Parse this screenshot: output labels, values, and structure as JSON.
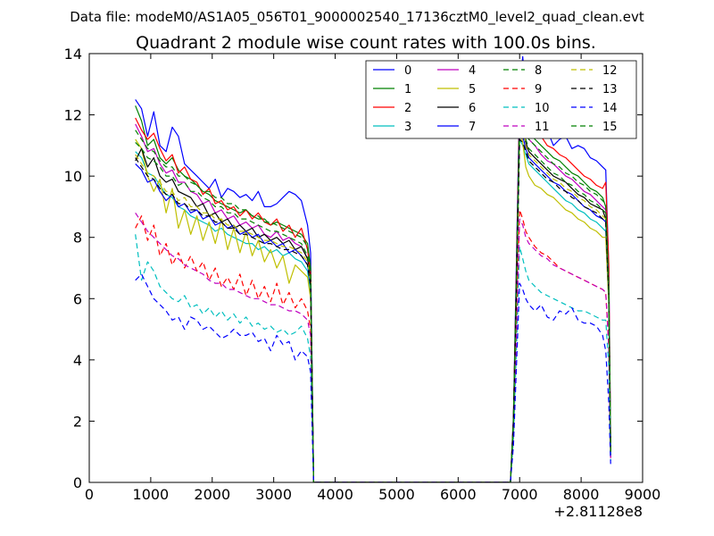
{
  "header": "Data file: modeM0/AS1A05_056T01_9000002540_17136cztM0_level2_quad_clean.evt",
  "chart_data": {
    "type": "line",
    "title": "Quadrant 2 module wise count rates with 100.0s bins.",
    "xlabel": "",
    "ylabel": "",
    "x_offset_label": "+2.81128e8",
    "xlim": [
      0,
      9000
    ],
    "ylim": [
      0,
      14
    ],
    "xticks": [
      "0",
      "1000",
      "2000",
      "3000",
      "4000",
      "5000",
      "6000",
      "7000",
      "8000",
      "9000"
    ],
    "yticks": [
      "0",
      "2",
      "4",
      "6",
      "8",
      "10",
      "12",
      "14"
    ],
    "legend_position": "top-right",
    "x": [
      750,
      850,
      950,
      1050,
      1150,
      1250,
      1350,
      1450,
      1550,
      1650,
      1750,
      1850,
      1950,
      2050,
      2150,
      2250,
      2350,
      2450,
      2550,
      2650,
      2750,
      2850,
      2950,
      3050,
      3150,
      3250,
      3350,
      3450,
      3550,
      3600,
      3650,
      3700,
      6800,
      6850,
      6900,
      6950,
      7000,
      7050,
      7100,
      7150,
      7250,
      7350,
      7450,
      7550,
      7650,
      7750,
      7850,
      7950,
      8050,
      8150,
      8250,
      8350,
      8400,
      8450,
      8480
    ],
    "series": [
      {
        "name": "0",
        "color": "#0000ff",
        "dash": "solid",
        "values": [
          12.5,
          12.2,
          11.3,
          12.1,
          11.0,
          10.8,
          11.6,
          11.3,
          10.4,
          10.2,
          10.0,
          9.8,
          9.6,
          9.9,
          9.3,
          9.6,
          9.5,
          9.3,
          9.4,
          9.2,
          9.5,
          9.0,
          9.0,
          9.1,
          9.3,
          9.5,
          9.4,
          9.2,
          8.4,
          7.5,
          0,
          0,
          0,
          0,
          2.2,
          7.5,
          12.8,
          13.9,
          12.6,
          12.0,
          11.8,
          11.5,
          11.5,
          11.0,
          11.2,
          11.3,
          10.9,
          11.0,
          10.9,
          10.6,
          10.5,
          10.3,
          10.2,
          7.0,
          1.2
        ]
      },
      {
        "name": "1",
        "color": "#008000",
        "dash": "solid",
        "values": [
          12.3,
          11.8,
          11.0,
          11.2,
          10.6,
          10.4,
          10.6,
          10.2,
          10.0,
          9.9,
          9.7,
          9.5,
          9.4,
          9.2,
          9.1,
          9.0,
          8.9,
          8.8,
          8.9,
          8.7,
          8.6,
          8.6,
          8.4,
          8.5,
          8.4,
          8.3,
          8.2,
          8.1,
          7.8,
          7.0,
          0,
          0,
          0,
          0,
          2.0,
          7.0,
          12.3,
          12.2,
          11.8,
          11.5,
          11.2,
          11.0,
          10.8,
          10.6,
          10.5,
          10.3,
          10.1,
          10.0,
          9.8,
          9.6,
          9.5,
          9.3,
          9.0,
          6.5,
          1.0
        ]
      },
      {
        "name": "2",
        "color": "#ff0000",
        "dash": "solid",
        "values": [
          11.9,
          11.5,
          11.2,
          11.4,
          10.9,
          10.5,
          10.7,
          10.1,
          10.3,
          9.9,
          9.8,
          9.4,
          9.6,
          9.1,
          9.2,
          8.9,
          9.0,
          8.7,
          8.9,
          8.6,
          8.8,
          8.5,
          8.4,
          8.6,
          8.2,
          8.4,
          8.0,
          8.3,
          7.6,
          6.8,
          0,
          0,
          0,
          0,
          2.1,
          7.2,
          12.4,
          12.8,
          12.1,
          11.7,
          11.6,
          11.3,
          11.0,
          10.9,
          10.7,
          10.6,
          10.4,
          10.2,
          10.0,
          9.9,
          9.7,
          9.6,
          9.8,
          7.1,
          1.3
        ]
      },
      {
        "name": "3",
        "color": "#00bfbf",
        "dash": "solid",
        "values": [
          10.8,
          10.6,
          10.1,
          10.0,
          9.7,
          9.4,
          9.3,
          9.0,
          8.9,
          8.7,
          8.6,
          8.5,
          8.4,
          8.2,
          8.3,
          8.1,
          8.0,
          7.9,
          7.8,
          7.8,
          7.6,
          7.7,
          7.5,
          7.6,
          7.4,
          7.5,
          7.3,
          7.2,
          6.9,
          6.2,
          0,
          0,
          0,
          0,
          1.9,
          6.5,
          11.2,
          11.0,
          10.7,
          10.4,
          10.2,
          10.0,
          9.8,
          9.6,
          9.4,
          9.2,
          9.1,
          8.9,
          8.8,
          8.6,
          8.5,
          8.3,
          8.2,
          5.9,
          0.9
        ]
      },
      {
        "name": "4",
        "color": "#bf00bf",
        "dash": "solid",
        "values": [
          11.7,
          11.3,
          10.8,
          10.9,
          10.4,
          10.1,
          10.2,
          9.8,
          9.8,
          9.5,
          9.4,
          9.1,
          9.2,
          8.8,
          8.9,
          8.6,
          8.7,
          8.4,
          8.5,
          8.3,
          8.4,
          8.1,
          8.0,
          8.2,
          7.9,
          8.0,
          7.8,
          7.7,
          7.3,
          6.6,
          0,
          0,
          0,
          0,
          2.0,
          6.9,
          12.0,
          11.9,
          11.5,
          11.2,
          11.0,
          10.7,
          10.5,
          10.4,
          10.2,
          10.0,
          9.9,
          9.7,
          9.5,
          9.4,
          9.2,
          9.0,
          8.9,
          6.4,
          1.0
        ]
      },
      {
        "name": "5",
        "color": "#bfbf00",
        "dash": "solid",
        "values": [
          11.2,
          10.9,
          10.0,
          9.5,
          9.9,
          8.8,
          9.6,
          8.3,
          8.9,
          8.1,
          8.7,
          7.9,
          8.5,
          7.8,
          8.6,
          7.6,
          8.3,
          7.5,
          8.2,
          7.4,
          7.9,
          7.2,
          7.6,
          7.0,
          7.4,
          6.5,
          7.1,
          6.9,
          6.7,
          6.0,
          0,
          0,
          0,
          0,
          1.8,
          6.6,
          11.6,
          11.1,
          10.3,
          10.0,
          9.7,
          9.6,
          9.4,
          9.3,
          9.1,
          8.9,
          8.8,
          8.6,
          8.5,
          8.3,
          8.2,
          8.0,
          8.0,
          5.8,
          0.9
        ]
      },
      {
        "name": "6",
        "color": "#000000",
        "dash": "solid",
        "values": [
          10.5,
          10.9,
          10.3,
          10.6,
          10.0,
          9.8,
          9.9,
          9.5,
          9.4,
          9.3,
          9.0,
          9.1,
          8.7,
          8.8,
          8.5,
          8.6,
          8.3,
          8.4,
          8.2,
          8.3,
          8.0,
          8.1,
          7.9,
          8.0,
          7.8,
          7.9,
          7.6,
          7.7,
          7.3,
          6.6,
          0,
          0,
          0,
          0,
          2.0,
          6.8,
          11.7,
          11.5,
          11.1,
          10.8,
          10.6,
          10.4,
          10.2,
          10.0,
          9.9,
          9.8,
          9.6,
          9.4,
          9.3,
          9.1,
          9.0,
          8.9,
          8.6,
          6.2,
          1.0
        ]
      },
      {
        "name": "7",
        "color": "#0000ff",
        "dash": "solid",
        "values": [
          10.4,
          10.2,
          9.8,
          9.9,
          9.5,
          9.2,
          9.4,
          9.0,
          9.1,
          8.8,
          8.9,
          8.6,
          8.7,
          8.4,
          8.5,
          8.3,
          8.4,
          8.1,
          8.2,
          8.0,
          8.1,
          7.8,
          7.9,
          7.7,
          7.8,
          7.5,
          7.6,
          7.4,
          7.1,
          6.4,
          0,
          0,
          0,
          0,
          1.9,
          6.6,
          11.4,
          11.3,
          10.9,
          10.6,
          10.4,
          10.2,
          10.0,
          9.8,
          9.7,
          9.5,
          9.4,
          9.2,
          9.0,
          8.9,
          8.7,
          8.6,
          8.5,
          6.1,
          0.9
        ]
      },
      {
        "name": "8",
        "color": "#008000",
        "dash": "dashed",
        "values": [
          11.1,
          10.9,
          10.6,
          10.5,
          10.3,
          10.0,
          10.0,
          9.7,
          9.8,
          9.5,
          9.5,
          9.3,
          9.2,
          9.0,
          9.0,
          8.8,
          8.8,
          8.6,
          8.6,
          8.5,
          8.4,
          8.3,
          8.2,
          8.2,
          8.1,
          8.0,
          7.9,
          7.8,
          7.4,
          6.7,
          0,
          0,
          0,
          0,
          2.0,
          6.8,
          11.8,
          11.6,
          11.2,
          10.9,
          10.7,
          10.5,
          10.3,
          10.1,
          10.0,
          9.8,
          9.7,
          9.5,
          9.4,
          9.2,
          9.1,
          8.9,
          8.8,
          6.3,
          1.0
        ]
      },
      {
        "name": "9",
        "color": "#ff0000",
        "dash": "dashed",
        "values": [
          8.3,
          8.7,
          7.9,
          8.4,
          7.4,
          7.8,
          7.1,
          7.5,
          7.0,
          7.4,
          6.9,
          7.2,
          6.6,
          7.0,
          6.4,
          6.7,
          6.3,
          6.8,
          6.1,
          6.6,
          6.0,
          6.4,
          5.9,
          6.5,
          5.8,
          6.2,
          5.7,
          6.0,
          5.6,
          5.0,
          0,
          0,
          0,
          0,
          1.6,
          5.3,
          8.9,
          8.6,
          8.2,
          8.0,
          7.7,
          7.5,
          7.4,
          7.2,
          7.0,
          6.9,
          6.8,
          6.7,
          6.6,
          6.5,
          6.4,
          6.3,
          6.2,
          4.4,
          0.8
        ]
      },
      {
        "name": "10",
        "color": "#00bfbf",
        "dash": "dashed",
        "values": [
          8.1,
          6.6,
          7.2,
          6.9,
          6.4,
          6.2,
          6.0,
          5.9,
          6.1,
          5.7,
          5.8,
          5.5,
          5.7,
          5.4,
          5.6,
          5.3,
          5.5,
          5.2,
          5.4,
          5.1,
          5.2,
          5.0,
          5.1,
          4.9,
          5.0,
          4.8,
          4.9,
          5.1,
          4.7,
          4.1,
          0,
          0,
          0,
          0,
          1.4,
          4.5,
          7.7,
          7.3,
          6.9,
          6.6,
          6.4,
          6.2,
          6.1,
          6.0,
          5.9,
          5.8,
          5.7,
          5.6,
          5.6,
          5.5,
          5.4,
          5.3,
          5.3,
          3.8,
          0.7
        ]
      },
      {
        "name": "11",
        "color": "#bf00bf",
        "dash": "dashed",
        "values": [
          8.8,
          8.5,
          8.2,
          8.0,
          7.8,
          7.6,
          7.4,
          7.3,
          7.1,
          7.0,
          6.9,
          6.8,
          6.6,
          6.5,
          6.5,
          6.3,
          6.3,
          6.2,
          6.1,
          6.0,
          6.0,
          5.9,
          5.8,
          5.8,
          5.7,
          5.6,
          5.6,
          5.5,
          5.3,
          4.8,
          0,
          0,
          0,
          0,
          1.5,
          5.0,
          8.6,
          8.4,
          8.0,
          7.8,
          7.6,
          7.4,
          7.3,
          7.1,
          7.0,
          6.9,
          6.8,
          6.7,
          6.6,
          6.5,
          6.4,
          6.3,
          6.2,
          4.5,
          0.8
        ]
      },
      {
        "name": "12",
        "color": "#bfbf00",
        "dash": "dashed",
        "values": [
          10.7,
          10.4,
          10.1,
          10.0,
          9.8,
          9.5,
          9.5,
          9.2,
          9.3,
          9.0,
          9.0,
          8.8,
          8.8,
          8.6,
          8.6,
          8.4,
          8.4,
          8.2,
          8.2,
          8.1,
          8.0,
          7.9,
          7.9,
          7.8,
          7.7,
          7.7,
          7.6,
          7.5,
          7.2,
          6.5,
          0,
          0,
          0,
          0,
          1.9,
          6.5,
          11.3,
          12.0,
          11.0,
          10.7,
          10.5,
          10.3,
          10.1,
          9.9,
          9.8,
          9.6,
          9.5,
          9.3,
          9.2,
          9.0,
          8.9,
          8.7,
          8.6,
          6.2,
          1.0
        ]
      },
      {
        "name": "13",
        "color": "#000000",
        "dash": "dashed",
        "values": [
          10.6,
          10.3,
          10.0,
          9.9,
          9.6,
          9.4,
          9.4,
          9.1,
          9.1,
          8.9,
          8.9,
          8.7,
          8.7,
          8.5,
          8.5,
          8.3,
          8.3,
          8.1,
          8.1,
          8.0,
          7.9,
          7.8,
          7.8,
          7.7,
          7.6,
          7.6,
          7.5,
          7.4,
          7.1,
          6.4,
          0,
          0,
          0,
          0,
          1.9,
          6.4,
          11.2,
          11.1,
          10.8,
          10.5,
          10.3,
          10.1,
          9.9,
          9.8,
          9.6,
          9.5,
          9.3,
          9.2,
          9.0,
          8.9,
          8.8,
          8.6,
          8.5,
          6.1,
          0.9
        ]
      },
      {
        "name": "14",
        "color": "#0000ff",
        "dash": "dashed",
        "values": [
          6.6,
          6.8,
          6.4,
          6.0,
          5.8,
          5.6,
          5.3,
          5.4,
          5.0,
          5.4,
          5.3,
          5.0,
          5.1,
          4.9,
          4.7,
          4.8,
          5.0,
          4.8,
          4.8,
          4.9,
          4.6,
          4.7,
          4.3,
          4.8,
          4.5,
          4.6,
          4.0,
          4.3,
          4.1,
          3.6,
          0,
          0,
          0,
          0,
          1.2,
          3.9,
          6.5,
          6.3,
          6.0,
          5.8,
          5.6,
          5.8,
          5.4,
          5.3,
          5.6,
          5.5,
          5.7,
          5.3,
          5.2,
          5.2,
          5.1,
          4.8,
          4.3,
          2.6,
          0.6
        ]
      },
      {
        "name": "15",
        "color": "#008000",
        "dash": "dashed",
        "values": [
          11.5,
          11.2,
          10.9,
          10.8,
          10.5,
          10.3,
          10.3,
          10.0,
          10.0,
          9.8,
          9.7,
          9.5,
          9.5,
          9.3,
          9.3,
          9.1,
          9.1,
          8.9,
          8.9,
          8.7,
          8.7,
          8.5,
          8.5,
          8.4,
          8.3,
          8.2,
          8.1,
          8.0,
          7.7,
          6.9,
          0,
          0,
          0,
          0,
          2.0,
          7.0,
          12.0,
          11.9,
          11.5,
          11.2,
          11.0,
          10.8,
          10.6,
          10.4,
          10.3,
          10.1,
          10.0,
          9.8,
          9.7,
          9.5,
          9.4,
          9.2,
          9.1,
          6.5,
          1.0
        ]
      }
    ]
  }
}
